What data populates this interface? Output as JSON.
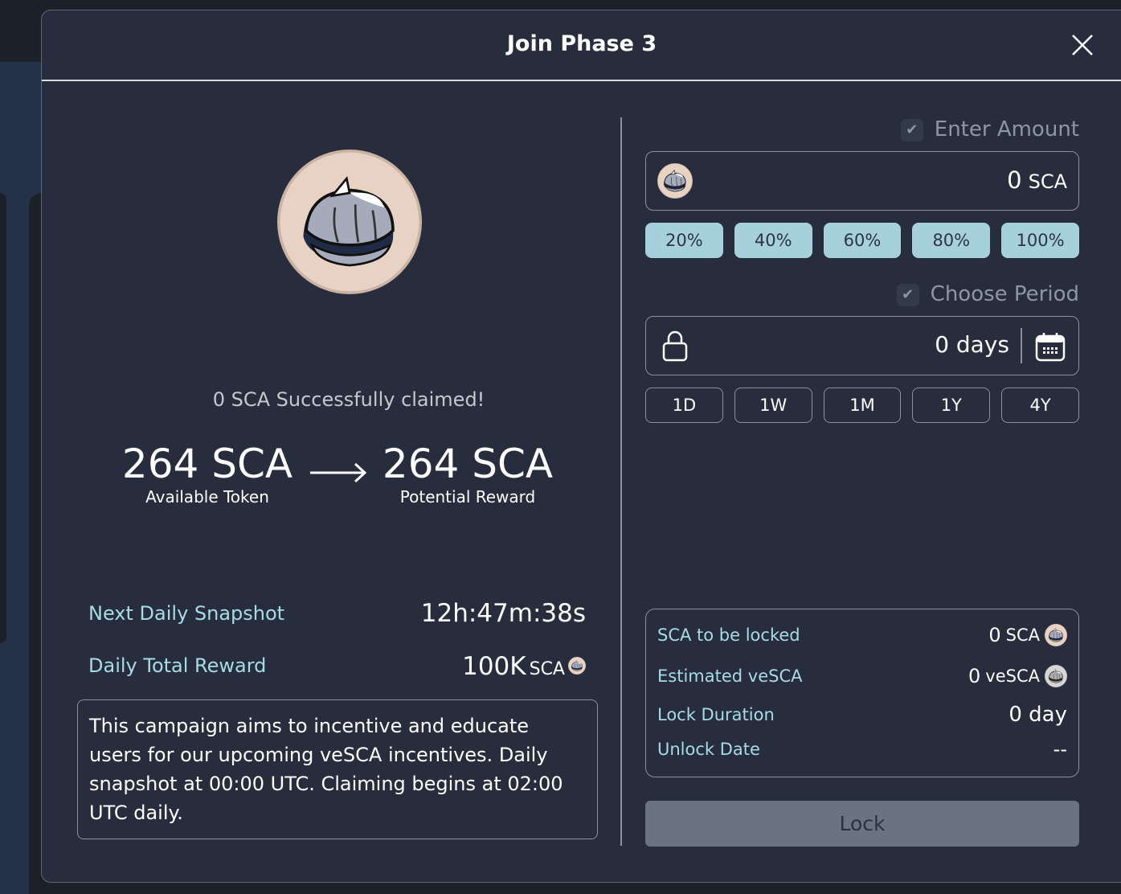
{
  "modal": {
    "title": "Join Phase 3"
  },
  "left": {
    "claimed_text": "0 SCA Successfully claimed!",
    "available": {
      "value": "264 SCA",
      "label": "Available Token"
    },
    "potential": {
      "value": "264 SCA",
      "label": "Potential Reward"
    },
    "snapshot": {
      "label": "Next Daily Snapshot",
      "value": "12h:47m:38s"
    },
    "daily_reward": {
      "label": "Daily Total Reward",
      "value": "100K",
      "unit": "SCA"
    },
    "description": "This campaign aims to incentive and educate users for our upcoming veSCA incentives. Daily snapshot at 00:00 UTC. Claiming begins at 02:00 UTC daily."
  },
  "right": {
    "amount": {
      "label": "Enter Amount",
      "value": "0",
      "unit": "SCA",
      "checked": true
    },
    "percent_buttons": [
      "20%",
      "40%",
      "60%",
      "80%",
      "100%"
    ],
    "period": {
      "label": "Choose Period",
      "value": "0 days",
      "checked": true
    },
    "period_buttons": [
      "1D",
      "1W",
      "1M",
      "1Y",
      "4Y"
    ],
    "summary": {
      "sca_locked": {
        "label": "SCA to be locked",
        "value": "0",
        "unit": "SCA"
      },
      "vesca": {
        "label": "Estimated veSCA",
        "value": "0",
        "unit": "veSCA"
      },
      "duration": {
        "label": "Lock Duration",
        "value": "0 day"
      },
      "unlock": {
        "label": "Unlock Date",
        "value": "--"
      }
    },
    "lock_button": "Lock"
  },
  "colors": {
    "accent": "#a5d0dc",
    "label": "#a7dbe6",
    "background": "#272d3c",
    "disabled_button": "#6b7280"
  }
}
